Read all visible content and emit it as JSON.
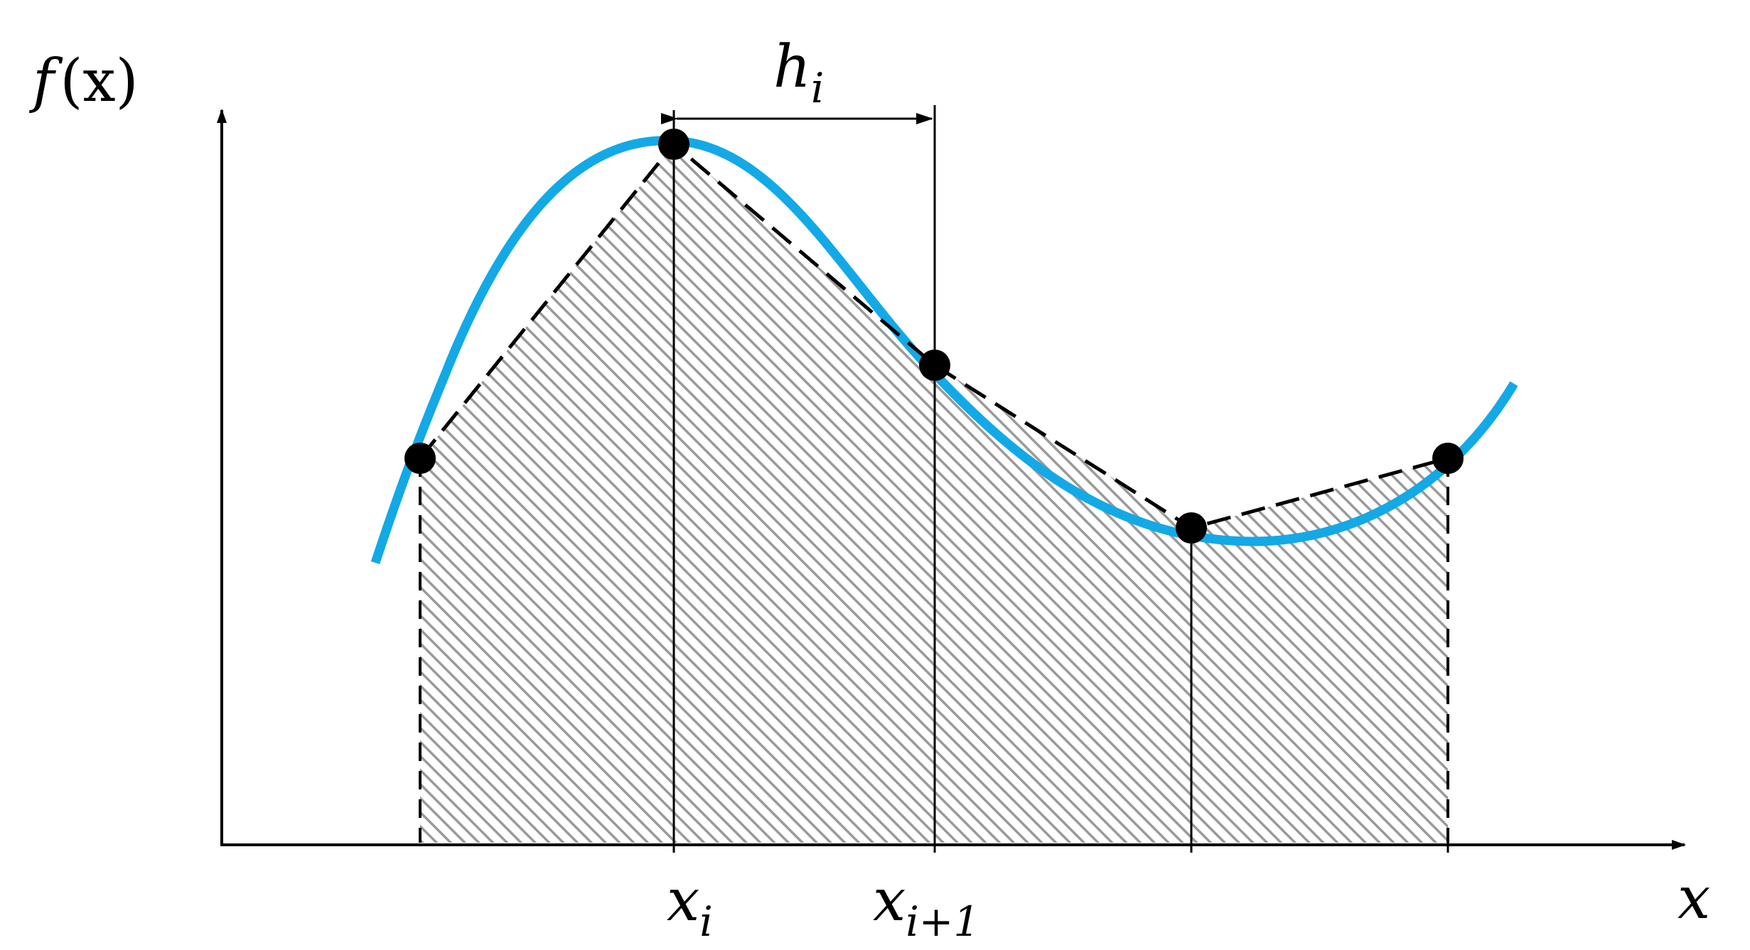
{
  "labels": {
    "y_axis": {
      "main": "f",
      "paren": "(x)"
    },
    "x_axis": "x",
    "x_i": {
      "main": "x",
      "sub": "i"
    },
    "x_i1": {
      "main": "x",
      "sub": "i+1"
    },
    "h_i": {
      "main": "h",
      "sub": "i"
    }
  },
  "colors": {
    "curve": "#13a9e6",
    "hatch": "#9a9a9a",
    "points": "#000000",
    "axes": "#000000"
  }
}
